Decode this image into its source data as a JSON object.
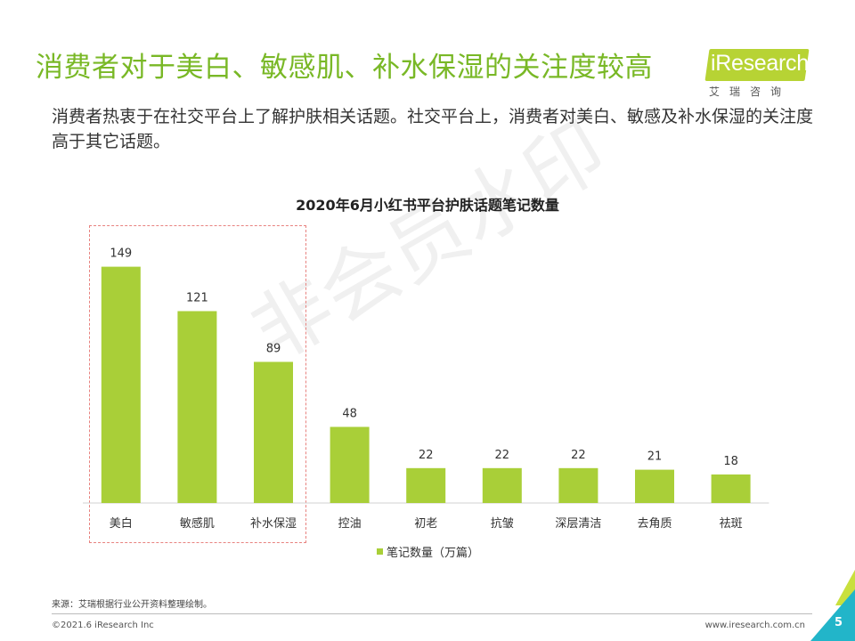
{
  "page": {
    "title": "消费者对于美白、敏感肌、补水保湿的关注度较高",
    "subtitle": "消费者热衷于在社交平台上了解护肤相关话题。社交平台上，消费者对美白、敏感及补水保湿的关注度高于其它话题。"
  },
  "logo": {
    "text": "iResearch",
    "sub": "艾瑞咨询"
  },
  "watermark": "非会员水印",
  "colors": {
    "accent": "#79b826",
    "bar": "#a9cf38",
    "highlight": "#e8827f"
  },
  "chart_data": {
    "type": "bar",
    "title": "2020年6月小红书平台护肤话题笔记数量",
    "categories": [
      "美白",
      "敏感肌",
      "补水保湿",
      "控油",
      "初老",
      "抗皱",
      "深层清洁",
      "去角质",
      "祛斑"
    ],
    "series": [
      {
        "name": "笔记数量（万篇）",
        "values": [
          149,
          121,
          89,
          48,
          22,
          22,
          22,
          21,
          18
        ]
      }
    ],
    "ylim": [
      0,
      160
    ],
    "grid": false,
    "legend": "bottom",
    "highlighted_categories": [
      "美白",
      "敏感肌",
      "补水保湿"
    ]
  },
  "footer": {
    "source": "来源：艾瑞根据行业公开资料整理绘制。",
    "copyright": "©2021.6 iResearch Inc",
    "website": "www.iresearch.com.cn",
    "page_number": "5"
  }
}
